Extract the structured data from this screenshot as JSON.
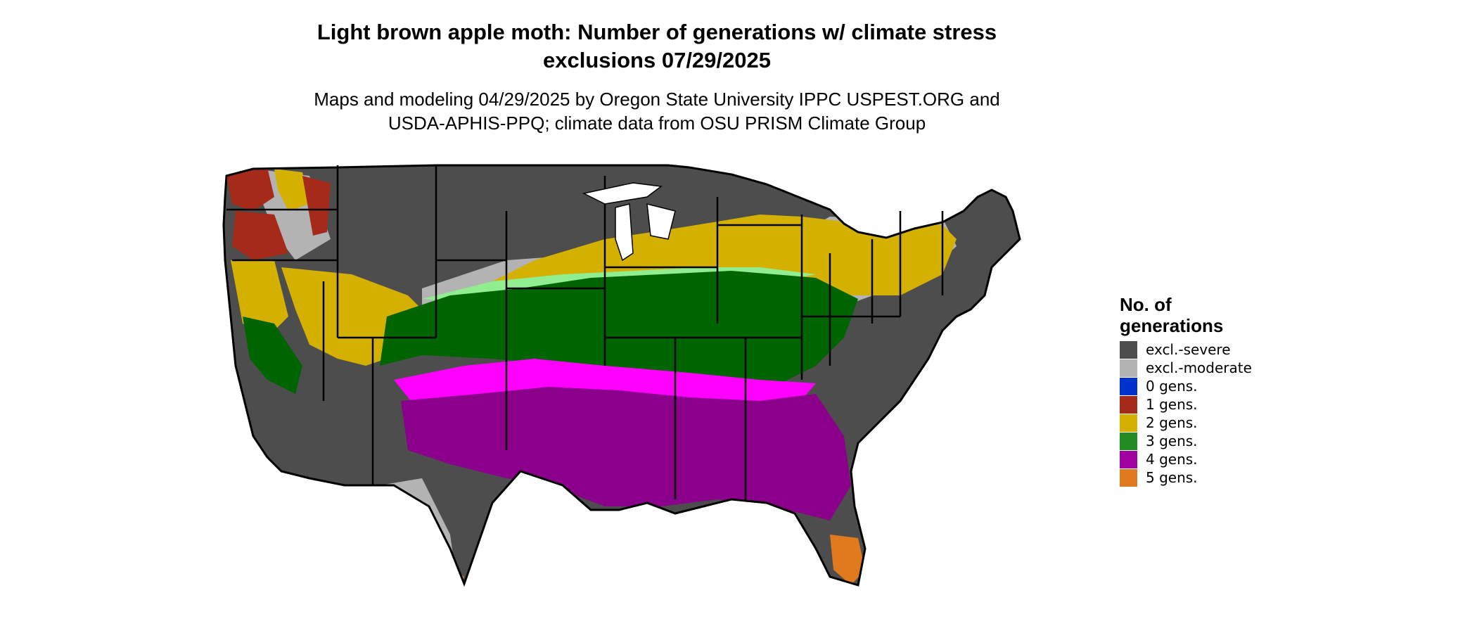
{
  "title": {
    "line1": "Light brown apple moth: Number of generations w/ climate stress",
    "line2": "exclusions 07/29/2025"
  },
  "subtitle": {
    "line1": "Maps and modeling 04/29/2025 by Oregon State University IPPC USPEST.ORG and",
    "line2": "USDA-APHIS-PPQ; climate data from OSU PRISM Climate Group"
  },
  "legend": {
    "title_line1": "No. of",
    "title_line2": "generations",
    "items": [
      {
        "label": "excl.-severe",
        "color": "#4d4d4d"
      },
      {
        "label": "excl.-moderate",
        "color": "#b3b3b3"
      },
      {
        "label": "0 gens.",
        "color": "#0033cc"
      },
      {
        "label": "1 gens.",
        "color": "#a52a1a"
      },
      {
        "label": "2 gens.",
        "color": "#d4b000"
      },
      {
        "label": "3 gens.",
        "color": "#228b22"
      },
      {
        "label": "4 gens.",
        "color": "#a000a0"
      },
      {
        "label": "5 gens.",
        "color": "#e07a1f"
      }
    ]
  },
  "map_colors": {
    "excl_severe": "#4d4d4d",
    "excl_moderate": "#b3b3b3",
    "gen1": "#a52a1a",
    "gen2": "#d4b000",
    "gen3": "#006400",
    "gen3_light": "#90ee90",
    "gen4": "#8b008b",
    "gen4_bright": "#ff00ff",
    "gen5": "#e07a1f",
    "borders": "#000000"
  }
}
